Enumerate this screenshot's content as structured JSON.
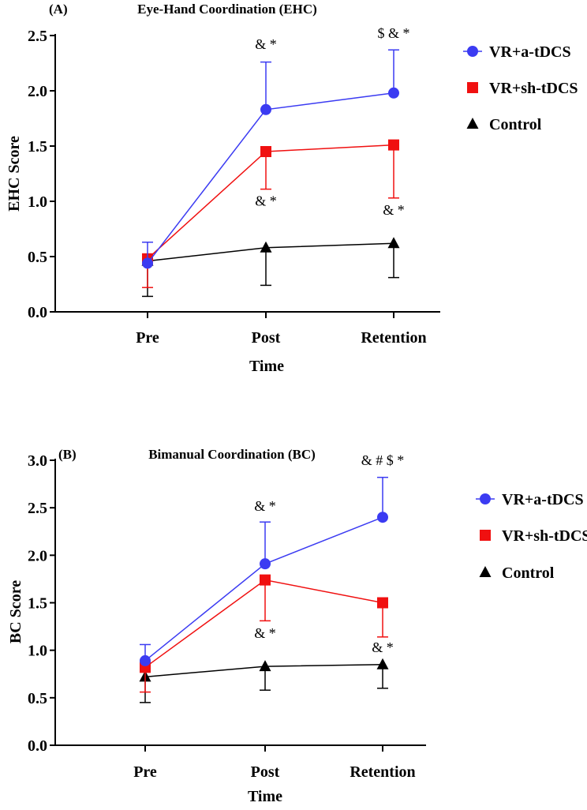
{
  "colors": {
    "series_a": "#3b3bf2",
    "series_b": "#f01010",
    "series_c": "#000000",
    "axis": "#000000"
  },
  "chart_data": [
    {
      "type": "line",
      "panel_label": "(A)",
      "title": "Eye-Hand Coordination (EHC)",
      "xlabel": "Time",
      "ylabel": "EHC Score",
      "categories": [
        "Pre",
        "Post",
        "Retention"
      ],
      "ylim": [
        0,
        2.5
      ],
      "yticks": [
        "0.0",
        "0.5",
        "1.0",
        "1.5",
        "2.0",
        "2.5"
      ],
      "legend_position": "right",
      "series": [
        {
          "name": "VR+a-tDCS",
          "marker": "circle",
          "color": "#3b3bf2",
          "values": [
            0.44,
            1.83,
            1.98
          ],
          "err": [
            0.19,
            0.43,
            0.39
          ],
          "err_dir": [
            1,
            1,
            1
          ]
        },
        {
          "name": "VR+sh-tDCS",
          "marker": "square",
          "color": "#f01010",
          "values": [
            0.48,
            1.45,
            1.51
          ],
          "err": [
            0.26,
            0.34,
            0.48
          ],
          "err_dir": [
            -1,
            -1,
            -1
          ]
        },
        {
          "name": "Control",
          "marker": "triangle",
          "color": "#000000",
          "values": [
            0.46,
            0.58,
            0.62
          ],
          "err": [
            0.32,
            0.34,
            0.31
          ],
          "err_dir": [
            -1,
            -1,
            -1
          ]
        }
      ],
      "annotations": [
        {
          "text": "& *",
          "category": 1,
          "y": 2.38
        },
        {
          "text": "$ & *",
          "category": 2,
          "y": 2.48
        },
        {
          "text": "& *",
          "category": 1,
          "y": 0.96
        },
        {
          "text": "& *",
          "category": 2,
          "y": 0.88
        }
      ]
    },
    {
      "type": "line",
      "panel_label": "(B)",
      "title": "Bimanual Coordination (BC)",
      "xlabel": "Time",
      "ylabel": "BC Score",
      "categories": [
        "Pre",
        "Post",
        "Retention"
      ],
      "ylim": [
        0,
        3.0
      ],
      "yticks": [
        "0.0",
        "0.5",
        "1.0",
        "1.5",
        "2.0",
        "2.5",
        "3.0"
      ],
      "legend_position": "right",
      "series": [
        {
          "name": "VR+a-tDCS",
          "marker": "circle",
          "color": "#3b3bf2",
          "values": [
            0.89,
            1.91,
            2.4
          ],
          "err": [
            0.17,
            0.44,
            0.42
          ],
          "err_dir": [
            1,
            1,
            1
          ]
        },
        {
          "name": "VR+sh-tDCS",
          "marker": "square",
          "color": "#f01010",
          "values": [
            0.82,
            1.74,
            1.5
          ],
          "err": [
            0.26,
            0.43,
            0.36
          ],
          "err_dir": [
            -1,
            -1,
            -1
          ]
        },
        {
          "name": "Control",
          "marker": "triangle",
          "color": "#000000",
          "values": [
            0.72,
            0.83,
            0.85
          ],
          "err": [
            0.27,
            0.25,
            0.25
          ],
          "err_dir": [
            -1,
            -1,
            -1
          ]
        }
      ],
      "annotations": [
        {
          "text": "& *",
          "category": 1,
          "y": 2.47
        },
        {
          "text": "& # $ *",
          "category": 2,
          "y": 2.95
        },
        {
          "text": "& *",
          "category": 1,
          "y": 1.13
        },
        {
          "text": "& *",
          "category": 2,
          "y": 0.98
        }
      ]
    }
  ]
}
